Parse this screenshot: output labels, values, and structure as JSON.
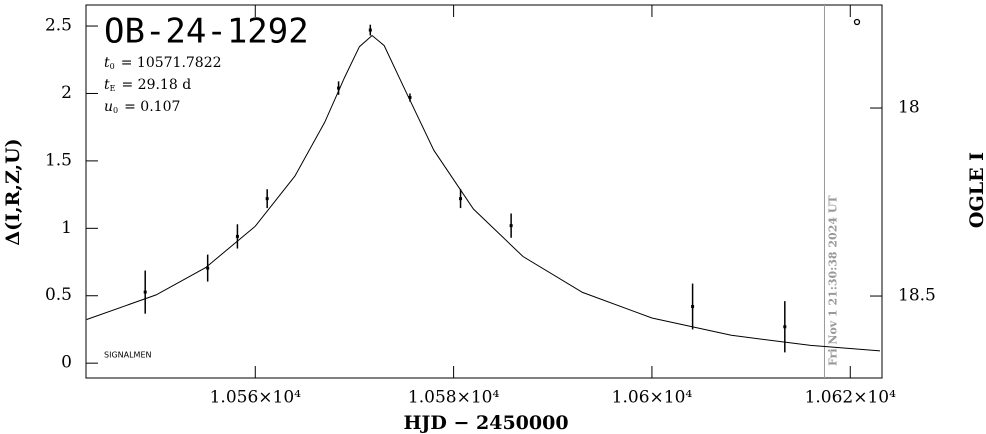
{
  "chart_data": {
    "type": "line",
    "title": "OB-24-1292",
    "parameters": [
      {
        "symbol": "t",
        "sub": "0",
        "text": "= 10571.7822"
      },
      {
        "symbol": "t",
        "sub": "E",
        "text": "= 29.18 d"
      },
      {
        "symbol": "u",
        "sub": "0",
        "text": "= 0.107"
      }
    ],
    "credit": "SIGNALMEN",
    "timestamp": "Fri Nov  1 21:30:38 2024 UT",
    "timestamp_x": 10617.4,
    "x_label": "HJD − 2450000",
    "y_label": "Δ(I,R,Z,U)",
    "y2_label": "OGLE I",
    "xlim": [
      10542.93,
      10623.2
    ],
    "xticks": [
      {
        "value": 10560,
        "label": "1.056×10⁴"
      },
      {
        "value": 10580,
        "label": "1.058×10⁴"
      },
      {
        "value": 10600,
        "label": "1.06×10⁴"
      },
      {
        "value": 10620,
        "label": "1.062×10⁴"
      }
    ],
    "ylim": [
      -0.11,
      2.656
    ],
    "yticks": [
      0,
      0.5,
      1,
      1.5,
      2,
      2.5
    ],
    "y2lim": [
      18.718,
      17.726
    ],
    "y2ticks": [
      18,
      18.5
    ],
    "series": [
      {
        "mode": "errorbar",
        "color": "#000000",
        "x": [
          10548.9,
          10555.2,
          10558.2,
          10561.2,
          10568.4,
          10571.6,
          10575.6,
          10580.7,
          10585.8,
          10604.1,
          10613.4
        ],
        "values": [
          0.527,
          0.705,
          0.94,
          1.22,
          2.04,
          2.47,
          1.97,
          1.22,
          1.02,
          0.42,
          0.27
        ],
        "errors": [
          0.16,
          0.1,
          0.09,
          0.07,
          0.05,
          0.04,
          0.03,
          0.07,
          0.09,
          0.17,
          0.19
        ]
      },
      {
        "mode": "curve",
        "color": "#000000",
        "x": [
          10543,
          10550,
          10555,
          10560,
          10564,
          10567,
          10569,
          10570.5,
          10571.78,
          10573,
          10575,
          10578,
          10582,
          10587,
          10593,
          10600,
          10608,
          10616,
          10623
        ],
        "values": [
          0.324,
          0.506,
          0.709,
          1.016,
          1.387,
          1.786,
          2.118,
          2.347,
          2.43,
          2.355,
          2.043,
          1.579,
          1.143,
          0.791,
          0.525,
          0.335,
          0.207,
          0.132,
          0.091
        ]
      }
    ]
  }
}
